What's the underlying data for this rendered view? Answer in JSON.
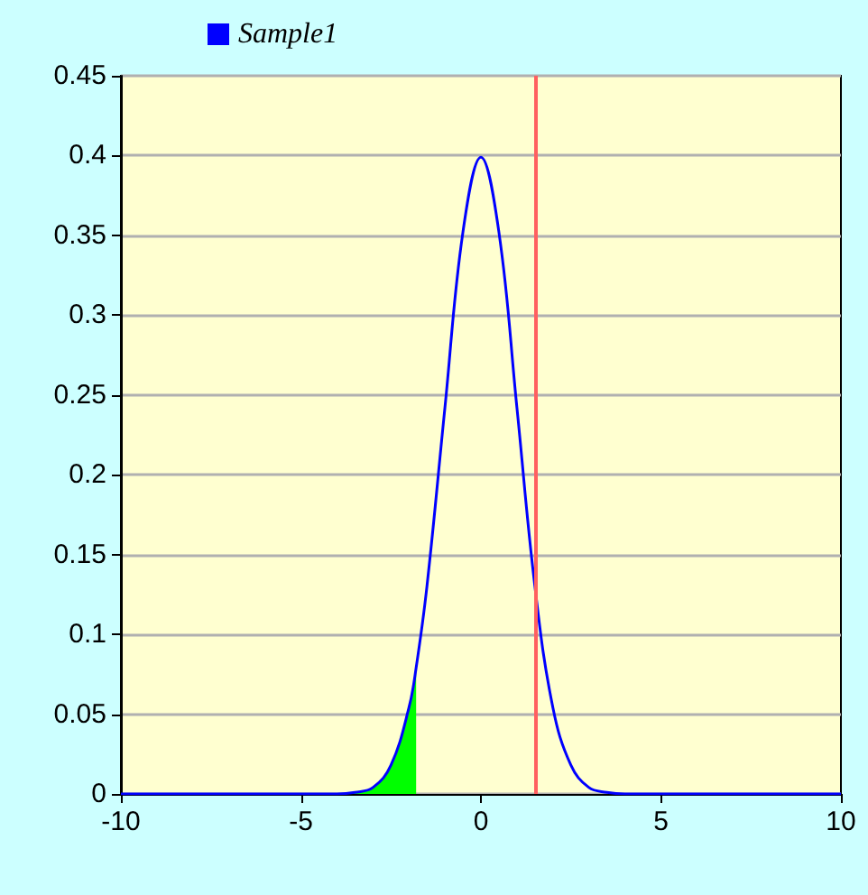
{
  "chart_data": {
    "type": "line",
    "xlim": [
      -10,
      10
    ],
    "xticks": [
      -10,
      -5,
      0,
      5,
      10
    ],
    "ylim": [
      0,
      0.45
    ],
    "yticks": [
      0,
      0.05,
      0.1,
      0.15,
      0.2,
      0.25,
      0.3,
      0.35,
      0.4,
      0.45
    ],
    "series": [
      {
        "name": "Sample1",
        "color": "#0000ff",
        "x": [
          -10,
          -6,
          -5,
          -4.5,
          -4,
          -3.5,
          -3,
          -2.5,
          -2,
          -1.8,
          -1.5,
          -1,
          -0.5,
          0,
          0.5,
          1,
          1.5,
          2,
          2.5,
          3,
          3.5,
          4,
          4.5,
          5,
          6,
          10
        ],
        "values": [
          0,
          0,
          0,
          0,
          0,
          0.001,
          0.004,
          0.018,
          0.054,
          0.079,
          0.13,
          0.242,
          0.352,
          0.399,
          0.352,
          0.242,
          0.13,
          0.054,
          0.018,
          0.004,
          0.001,
          0,
          0,
          0,
          0,
          0
        ]
      },
      {
        "type": "area",
        "color": "#00ff00",
        "x": [
          -4.5,
          -4,
          -3.5,
          -3,
          -2.5,
          -2,
          -1.8
        ],
        "values": [
          0,
          0,
          0.001,
          0.004,
          0.018,
          0.054,
          0.079
        ]
      }
    ],
    "ref_lines": [
      {
        "axis": "x",
        "value": 1.5,
        "color": "#ff6060"
      }
    ],
    "grid": "y",
    "legend": "top left",
    "marker": "none",
    "line_style": "solid"
  }
}
